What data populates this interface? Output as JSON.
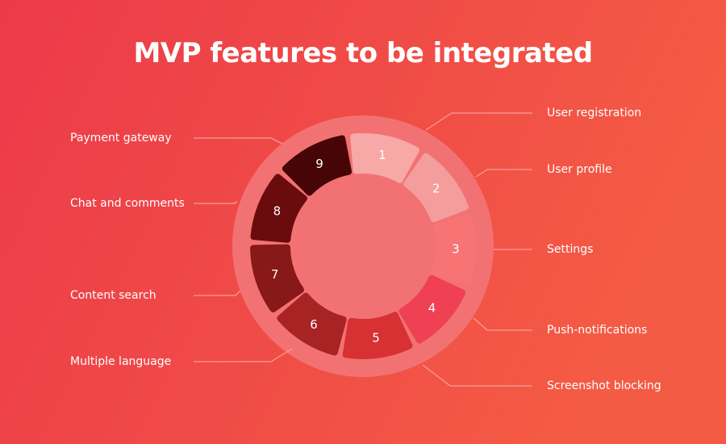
{
  "title": "MVP features to be integrated",
  "segments": [
    {
      "number": "1",
      "label": "User registration"
    },
    {
      "number": "2",
      "label": "User profile"
    },
    {
      "number": "3",
      "label": "Settings"
    },
    {
      "number": "4",
      "label": "Push-notifications"
    },
    {
      "number": "5",
      "label": "Screenshot blocking"
    },
    {
      "number": "6",
      "label": "Multiple language"
    },
    {
      "number": "7",
      "label": "Content search"
    },
    {
      "number": "8",
      "label": "Chat and comments"
    },
    {
      "number": "9",
      "label": "Payment gateway"
    }
  ]
}
